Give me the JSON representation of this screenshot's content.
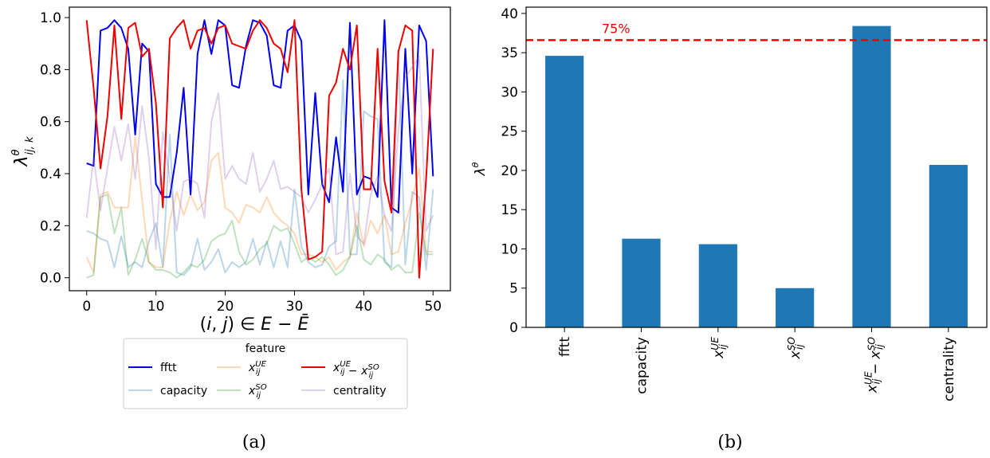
{
  "captions": {
    "a": "(a)",
    "b": "(b)"
  },
  "chart_data": [
    {
      "type": "line",
      "panel": "a",
      "ylabel": "λ^θ_{ij,k}",
      "xlabel": "(i, j) ∈ E − Ē",
      "xlim": [
        -2.5,
        52.5
      ],
      "ylim": [
        -0.05,
        1.04
      ],
      "xticks": [
        0,
        10,
        20,
        30,
        40,
        50
      ],
      "yticks": [
        0.0,
        0.2,
        0.4,
        0.6,
        0.8,
        1.0
      ],
      "legend_title": "feature",
      "legend_placement": "below",
      "x": [
        0,
        1,
        2,
        3,
        4,
        5,
        6,
        7,
        8,
        9,
        10,
        11,
        12,
        13,
        14,
        15,
        16,
        17,
        18,
        19,
        20,
        21,
        22,
        23,
        24,
        25,
        26,
        27,
        28,
        29,
        30,
        31,
        32,
        33,
        34,
        35,
        36,
        37,
        38,
        39,
        40,
        41,
        42,
        43,
        44,
        45,
        46,
        47,
        48,
        49,
        50
      ],
      "series": [
        {
          "name": "fftt",
          "color": "#0000ee",
          "alpha": 1.0,
          "order": 3,
          "values": [
            0.44,
            0.43,
            0.95,
            0.96,
            0.99,
            0.96,
            0.88,
            0.55,
            0.9,
            0.87,
            0.36,
            0.31,
            0.31,
            0.48,
            0.73,
            0.32,
            0.86,
            0.99,
            0.86,
            0.99,
            0.97,
            0.74,
            0.73,
            0.89,
            0.99,
            0.98,
            0.93,
            0.74,
            0.73,
            0.95,
            0.97,
            0.91,
            0.32,
            0.71,
            0.36,
            0.29,
            0.54,
            0.33,
            0.98,
            0.32,
            0.39,
            0.38,
            0.31,
            0.99,
            0.27,
            0.25,
            0.88,
            0.4,
            0.97,
            0.91,
            0.39
          ]
        },
        {
          "name": "capacity",
          "color": "#1f77b4",
          "alpha": 0.3,
          "order": 0,
          "values": [
            0.18,
            0.17,
            0.15,
            0.14,
            0.04,
            0.16,
            0.04,
            0.06,
            0.04,
            0.14,
            0.21,
            0.04,
            0.55,
            0.02,
            0.01,
            0.04,
            0.15,
            0.03,
            0.06,
            0.11,
            0.02,
            0.06,
            0.04,
            0.06,
            0.15,
            0.05,
            0.14,
            0.04,
            0.14,
            0.04,
            0.34,
            0.12,
            0.06,
            0.04,
            0.05,
            0.12,
            0.14,
            0.76,
            0.09,
            0.09,
            0.64,
            0.62,
            0.61,
            0.06,
            0.04,
            0.87,
            0.05,
            0.33,
            0.31,
            0.03,
            0.34
          ]
        },
        {
          "name": "x_ij^UE",
          "color": "#ff7f0e",
          "alpha": 0.3,
          "order": 1,
          "values": [
            0.08,
            0.02,
            0.32,
            0.33,
            0.27,
            0.27,
            0.27,
            0.54,
            0.3,
            0.06,
            0.04,
            0.04,
            0.22,
            0.33,
            0.24,
            0.32,
            0.26,
            0.29,
            0.45,
            0.48,
            0.27,
            0.25,
            0.21,
            0.28,
            0.27,
            0.25,
            0.31,
            0.25,
            0.22,
            0.2,
            0.17,
            0.09,
            0.09,
            0.08,
            0.06,
            0.08,
            0.03,
            0.06,
            0.08,
            0.25,
            0.12,
            0.22,
            0.17,
            0.24,
            0.09,
            0.1,
            0.21,
            0.3,
            0.42,
            0.1,
            0.1
          ]
        },
        {
          "name": "x_ij^SO",
          "color": "#2ca02c",
          "alpha": 0.3,
          "order": 2,
          "values": [
            0.0,
            0.01,
            0.31,
            0.32,
            0.17,
            0.27,
            0.01,
            0.07,
            0.15,
            0.06,
            0.03,
            0.03,
            0.02,
            0.0,
            0.02,
            0.05,
            0.04,
            0.07,
            0.14,
            0.16,
            0.17,
            0.22,
            0.1,
            0.05,
            0.07,
            0.11,
            0.13,
            0.2,
            0.18,
            0.19,
            0.13,
            0.06,
            0.08,
            0.06,
            0.08,
            0.05,
            0.01,
            0.03,
            0.08,
            0.2,
            0.07,
            0.05,
            0.09,
            0.07,
            0.03,
            0.05,
            0.02,
            0.02,
            0.25,
            0.09,
            0.09
          ]
        },
        {
          "name": "x_ij^UE − x_ij^SO",
          "color": "#ee0000",
          "alpha": 1.0,
          "order": 4,
          "values": [
            0.99,
            0.73,
            0.42,
            0.62,
            0.97,
            0.61,
            0.96,
            0.98,
            0.85,
            0.88,
            0.67,
            0.27,
            0.92,
            0.96,
            0.99,
            0.88,
            0.95,
            0.96,
            0.9,
            0.96,
            0.97,
            0.9,
            0.89,
            0.88,
            0.95,
            0.99,
            0.96,
            0.9,
            0.88,
            0.79,
            0.99,
            0.34,
            0.07,
            0.08,
            0.1,
            0.7,
            0.75,
            0.88,
            0.8,
            0.97,
            0.34,
            0.34,
            0.88,
            0.37,
            0.25,
            0.87,
            0.97,
            0.95,
            0.0,
            0.38,
            0.88
          ]
        },
        {
          "name": "centrality",
          "color": "#9467bd",
          "alpha": 0.3,
          "order": 5,
          "values": [
            0.23,
            0.46,
            0.26,
            0.42,
            0.58,
            0.45,
            0.59,
            0.38,
            0.66,
            0.46,
            0.11,
            0.56,
            0.38,
            0.18,
            0.37,
            0.38,
            0.36,
            0.23,
            0.6,
            0.71,
            0.38,
            0.43,
            0.38,
            0.36,
            0.48,
            0.33,
            0.38,
            0.45,
            0.34,
            0.35,
            0.33,
            0.31,
            0.25,
            0.3,
            0.36,
            0.42,
            0.09,
            0.1,
            0.4,
            0.16,
            0.13,
            0.32,
            0.39,
            0.24,
            0.18,
            0.57,
            0.77,
            0.81,
            0.85,
            0.18,
            0.24
          ]
        }
      ]
    },
    {
      "type": "bar",
      "panel": "b",
      "ylabel": "λ^θ",
      "ylim": [
        0,
        40.8
      ],
      "yticks": [
        0,
        5,
        10,
        15,
        20,
        25,
        30,
        35,
        40
      ],
      "categories": [
        "fftt",
        "capacity",
        "x_ij^UE",
        "x_ij^SO",
        "x_ij^UE − x_ij^SO",
        "centrality"
      ],
      "values": [
        34.6,
        11.3,
        10.6,
        5.0,
        38.4,
        20.7
      ],
      "bar_color": "#1f77b4",
      "reference_line": {
        "value": 36.6,
        "label": "75%",
        "color": "#ee0000",
        "style": "dashed"
      }
    }
  ]
}
